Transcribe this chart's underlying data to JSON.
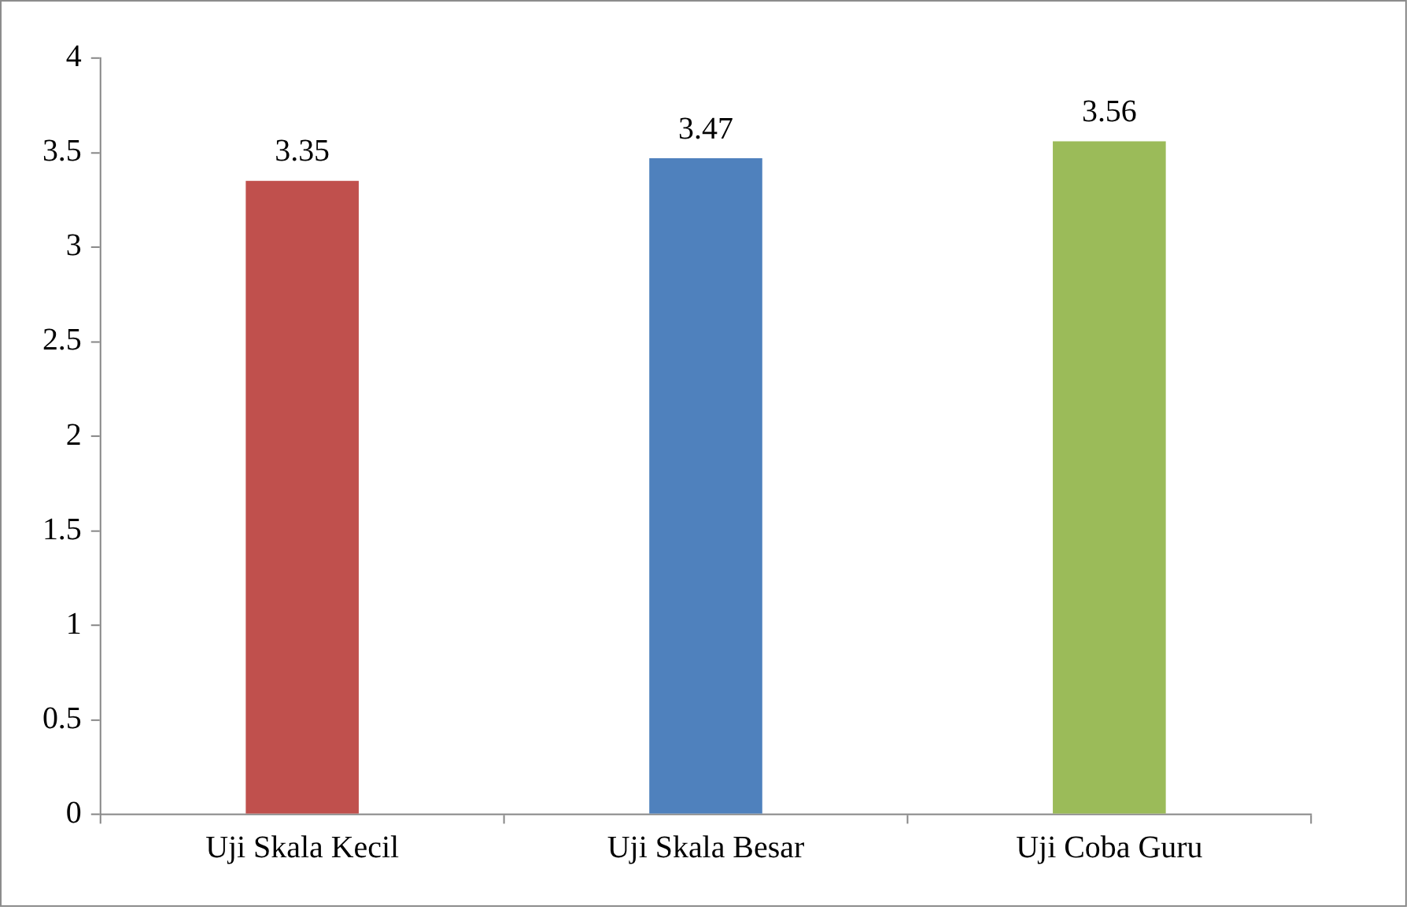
{
  "chart_data": {
    "type": "bar",
    "categories": [
      "Uji Skala Kecil",
      "Uji Skala Besar",
      "Uji Coba Guru"
    ],
    "values": [
      3.35,
      3.47,
      3.56
    ],
    "colors": [
      "#c0504d",
      "#4f81bd",
      "#9bbb59"
    ],
    "ylim": [
      0,
      4
    ],
    "yticks": [
      0,
      0.5,
      1,
      1.5,
      2,
      2.5,
      3,
      3.5,
      4
    ],
    "grid": false,
    "legend": false,
    "data_labels": true
  }
}
